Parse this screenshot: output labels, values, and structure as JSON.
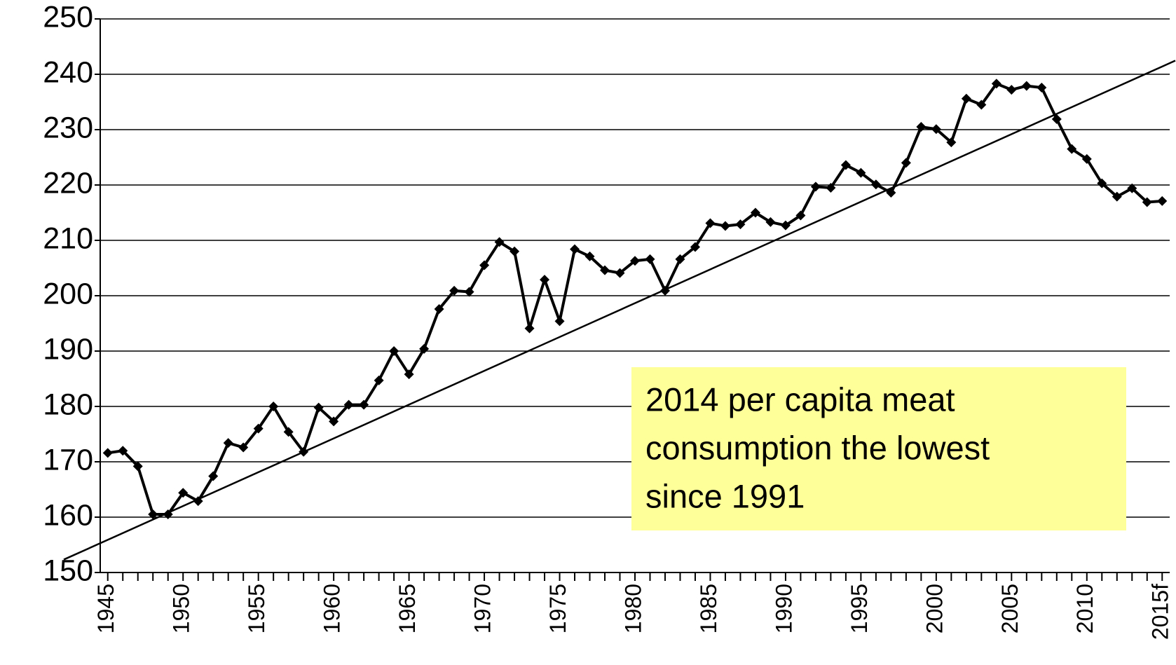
{
  "chart_data": {
    "type": "line",
    "categories": [
      "1945",
      null,
      null,
      null,
      null,
      "1950",
      null,
      null,
      null,
      null,
      "1955",
      null,
      null,
      null,
      null,
      "1960",
      null,
      null,
      null,
      null,
      "1965",
      null,
      null,
      null,
      null,
      "1970",
      null,
      null,
      null,
      null,
      "1975",
      null,
      null,
      null,
      null,
      "1980",
      null,
      null,
      null,
      null,
      "1985",
      null,
      null,
      null,
      null,
      "1990",
      null,
      null,
      null,
      null,
      "1995",
      null,
      null,
      null,
      null,
      "2000",
      null,
      null,
      null,
      null,
      "2005",
      null,
      null,
      null,
      null,
      "2010",
      null,
      null,
      null,
      null,
      "2015f"
    ],
    "values": [
      171.6,
      172,
      169.2,
      160.5,
      160.5,
      164.4,
      162.9,
      167.4,
      173.4,
      172.6,
      176,
      180,
      175.4,
      171.8,
      179.8,
      177.3,
      180.3,
      180.3,
      184.7,
      190,
      185.8,
      190.4,
      197.6,
      200.9,
      200.7,
      205.5,
      209.7,
      208,
      194.1,
      202.9,
      195.4,
      208.4,
      207.1,
      204.6,
      204.1,
      206.3,
      206.6,
      200.9,
      206.6,
      208.8,
      213.1,
      212.6,
      212.9,
      215,
      213.3,
      212.7,
      214.5,
      219.7,
      219.5,
      223.6,
      222.2,
      220.1,
      218.6,
      224,
      230.5,
      230.1,
      227.7,
      235.6,
      234.5,
      238.3,
      237.2,
      237.9,
      237.6,
      231.9,
      226.5,
      224.7,
      220.3,
      217.9,
      219.4,
      216.9,
      217.1
    ],
    "color": "#000000",
    "trend_line": [
      155.9,
      241.4
    ],
    "ylim": [
      150,
      250
    ],
    "yticks": [
      150,
      160,
      170,
      180,
      190,
      200,
      210,
      220,
      230,
      240,
      250
    ],
    "grid": true,
    "annotation": [
      "2014 per capita meat",
      "consumption the lowest",
      "since 1991"
    ],
    "annotation_color": "#ffff99"
  }
}
